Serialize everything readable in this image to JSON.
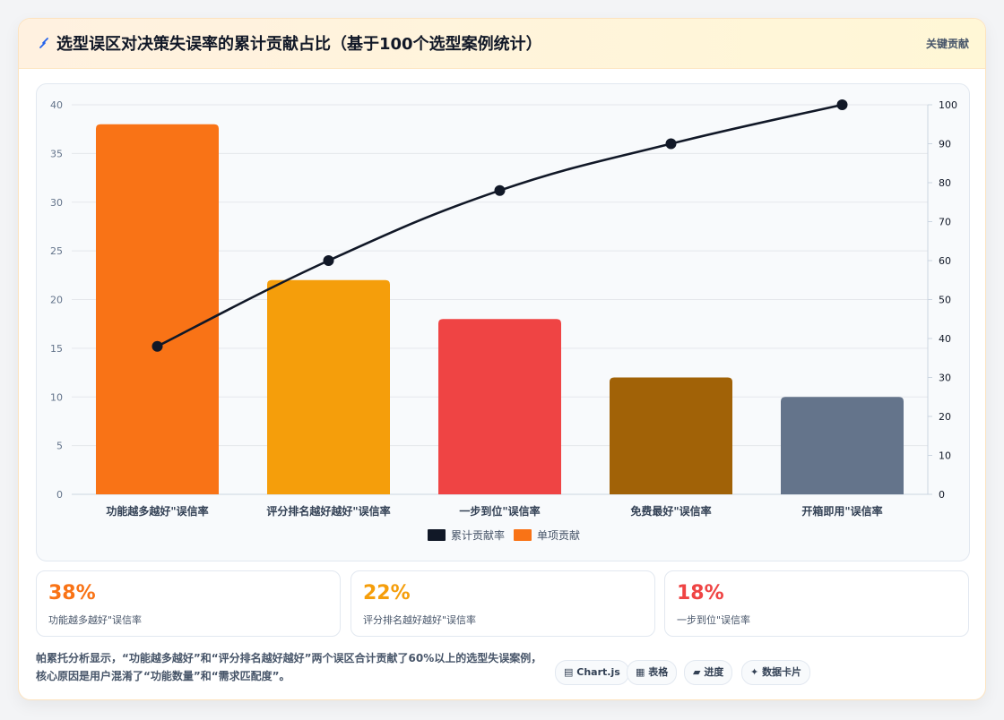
{
  "header": {
    "title": "选型误区对决策失误率的累计贡献占比（基于100个选型案例统计）",
    "badge": "关键贡献"
  },
  "chart_data": {
    "type": "bar",
    "categories": [
      "功能越多越好\"误信率",
      "评分排名越好越好\"误信率",
      "一步到位\"误信率",
      "免费最好\"误信率",
      "开箱即用\"误信率"
    ],
    "series": [
      {
        "name": "单项贡献",
        "type": "bar",
        "axis": "left",
        "values": [
          38,
          22,
          18,
          12,
          10
        ],
        "colors": [
          "#f97316",
          "#f59e0b",
          "#ef4444",
          "#a16207",
          "#64748b"
        ]
      },
      {
        "name": "累计贡献率",
        "type": "line",
        "axis": "right",
        "values": [
          38,
          60,
          78,
          90,
          100
        ],
        "color": "#111827"
      }
    ],
    "y_left": {
      "min": 0,
      "max": 40,
      "ticks": [
        0,
        5,
        10,
        15,
        20,
        25,
        30,
        35,
        40
      ]
    },
    "y_right": {
      "min": 0,
      "max": 100,
      "ticks": [
        0,
        10,
        20,
        30,
        40,
        50,
        60,
        70,
        80,
        90,
        100
      ]
    },
    "legend": {
      "placement": "bottom",
      "items": [
        {
          "label": "累计贡献率",
          "color": "#111827"
        },
        {
          "label": "单项贡献",
          "color": "#f97316"
        }
      ]
    },
    "grid": true
  },
  "stats": [
    {
      "value": "38%",
      "label": "功能越多越好\"误信率",
      "color": "#f97316"
    },
    {
      "value": "22%",
      "label": "评分排名越好越好\"误信率",
      "color": "#f59e0b"
    },
    {
      "value": "18%",
      "label": "一步到位\"误信率",
      "color": "#ef4444"
    }
  ],
  "footer": {
    "text": "帕累托分析显示，“功能越多越好”和“评分排名越好越好”两个误区合计贡献了60%以上的选型失误案例，核心原因是用户混淆了“功能数量”和“需求匹配度”。",
    "chips": [
      {
        "icon": "▤",
        "label": "Chart.js"
      },
      {
        "icon": "▦",
        "label": "表格"
      },
      {
        "icon": "▰",
        "label": "进度"
      },
      {
        "icon": "✦",
        "label": "数据卡片"
      }
    ]
  }
}
